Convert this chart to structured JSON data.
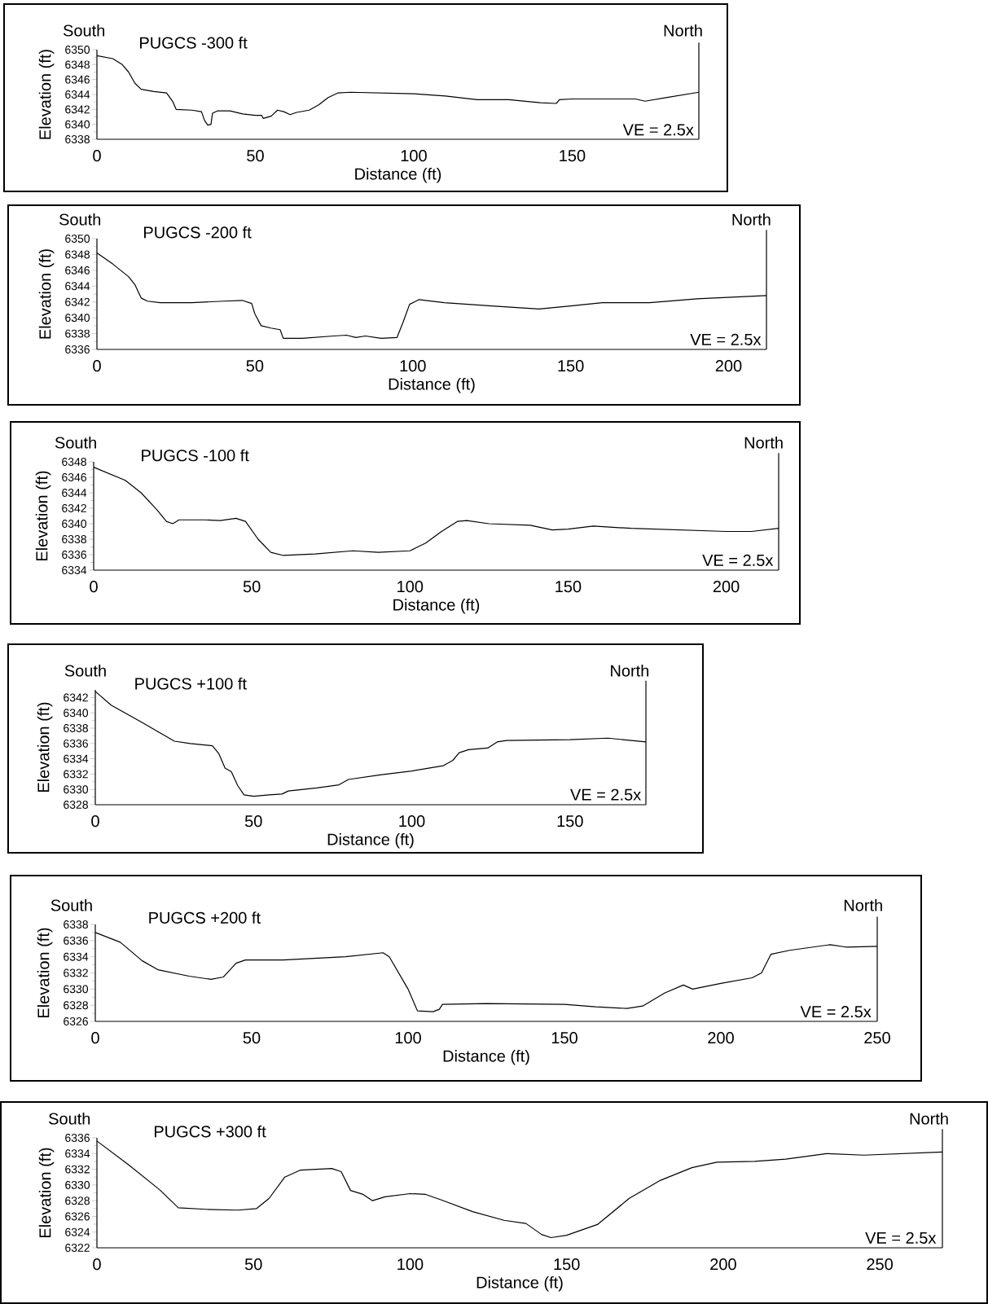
{
  "chart_data": [
    {
      "type": "line",
      "title": "PUGCS -300 ft",
      "xlabel": "Distance (ft)",
      "ylabel": "Elevation (ft)",
      "color": "#000000",
      "annotations": [
        "South",
        "North",
        "VE = 2.5x"
      ],
      "xlim": [
        0,
        190
      ],
      "ylim": [
        6338,
        6350
      ],
      "xticks": [
        0,
        50,
        100,
        150
      ],
      "yticks": [
        6338,
        6340,
        6342,
        6344,
        6346,
        6348,
        6350
      ],
      "x": [
        0,
        5,
        8,
        10,
        12,
        14,
        18,
        22,
        24,
        25,
        30,
        33,
        34,
        35,
        36,
        36.5,
        38,
        42,
        46,
        50,
        52,
        52.5,
        55,
        57,
        59,
        61,
        63,
        67,
        70,
        73,
        76,
        80,
        100,
        110,
        120,
        130,
        140,
        145,
        146,
        150,
        160,
        170,
        173,
        180,
        190
      ],
      "values": [
        6349.2,
        6348.8,
        6348,
        6347,
        6345.5,
        6344.7,
        6344.4,
        6344.2,
        6343,
        6342,
        6341.9,
        6341.7,
        6340.5,
        6339.9,
        6340,
        6341.5,
        6341.8,
        6341.8,
        6341.4,
        6341.2,
        6341.2,
        6340.8,
        6341.1,
        6341.9,
        6341.7,
        6341.3,
        6341.6,
        6341.9,
        6342.6,
        6343.6,
        6344.2,
        6344.3,
        6344.1,
        6343.8,
        6343.3,
        6343.3,
        6342.9,
        6342.8,
        6343.3,
        6343.4,
        6343.4,
        6343.4,
        6343.1,
        6343.6,
        6344.3
      ]
    },
    {
      "type": "line",
      "title": "PUGCS -200 ft",
      "xlabel": "Distance (ft)",
      "ylabel": "Elevation (ft)",
      "color": "#000000",
      "annotations": [
        "South",
        "North",
        "VE = 2.5x"
      ],
      "xlim": [
        0,
        212
      ],
      "ylim": [
        6336,
        6350
      ],
      "xticks": [
        0,
        50,
        100,
        150,
        200
      ],
      "yticks": [
        6336,
        6338,
        6340,
        6342,
        6344,
        6346,
        6348,
        6350
      ],
      "x": [
        0,
        5,
        10,
        12,
        14,
        16,
        20,
        30,
        40,
        46,
        49,
        50,
        52,
        55,
        58,
        59,
        65,
        75,
        79,
        82,
        85,
        90,
        95,
        97,
        99,
        102,
        110,
        125,
        140,
        150,
        160,
        175,
        190,
        212
      ],
      "values": [
        6348.2,
        6346.8,
        6345.2,
        6344.2,
        6342.5,
        6342.1,
        6341.9,
        6341.9,
        6342.1,
        6342.2,
        6341.8,
        6340.5,
        6339,
        6338.7,
        6338.5,
        6337.4,
        6337.4,
        6337.7,
        6337.8,
        6337.5,
        6337.7,
        6337.4,
        6337.5,
        6339.5,
        6341.7,
        6342.3,
        6341.9,
        6341.5,
        6341.1,
        6341.5,
        6341.9,
        6341.9,
        6342.4,
        6342.8
      ]
    },
    {
      "type": "line",
      "title": "PUGCS -100 ft",
      "xlabel": "Distance (ft)",
      "ylabel": "Elevation (ft)",
      "color": "#000000",
      "annotations": [
        "South",
        "North",
        "VE = 2.5x"
      ],
      "xlim": [
        0,
        216.6
      ],
      "ylim": [
        6334,
        6348
      ],
      "xticks": [
        0,
        50,
        100,
        150,
        200
      ],
      "yticks": [
        6334,
        6336,
        6338,
        6340,
        6342,
        6344,
        6346,
        6348
      ],
      "x": [
        0,
        10,
        15,
        20,
        23,
        25,
        27,
        35,
        40,
        45,
        48,
        52,
        56,
        60,
        70,
        82,
        90,
        100,
        105,
        110,
        115,
        118,
        125,
        138,
        145,
        150,
        158,
        170,
        200,
        208,
        216.6
      ],
      "values": [
        6347.3,
        6345.6,
        6344,
        6341.8,
        6340.3,
        6340,
        6340.5,
        6340.5,
        6340.4,
        6340.7,
        6340.3,
        6338,
        6336.3,
        6335.9,
        6336.1,
        6336.5,
        6336.3,
        6336.5,
        6337.5,
        6339,
        6340.3,
        6340.4,
        6340,
        6339.8,
        6339.2,
        6339.3,
        6339.7,
        6339.4,
        6339,
        6339,
        6339.4
      ]
    },
    {
      "type": "line",
      "title": "PUGCS +100 ft",
      "xlabel": "Distance (ft)",
      "ylabel": "Elevation (ft)",
      "color": "#000000",
      "annotations": [
        "South",
        "North",
        "VE = 2.5x"
      ],
      "xlim": [
        0,
        174
      ],
      "ylim": [
        6328,
        6343
      ],
      "xticks": [
        0,
        50,
        100,
        150
      ],
      "yticks": [
        6328,
        6330,
        6332,
        6334,
        6336,
        6338,
        6340,
        6342
      ],
      "x": [
        0,
        5,
        15,
        25,
        30,
        37,
        39,
        41,
        43,
        45,
        47,
        50,
        55,
        59,
        61,
        70,
        77,
        80,
        90,
        100,
        110,
        113,
        115,
        118,
        124,
        127,
        130,
        150,
        162,
        174
      ],
      "values": [
        6342.8,
        6341,
        6338.7,
        6336.3,
        6336,
        6335.7,
        6334.7,
        6332.8,
        6332.3,
        6330.5,
        6329.3,
        6329.1,
        6329.3,
        6329.4,
        6329.8,
        6330.2,
        6330.6,
        6331.3,
        6331.9,
        6332.4,
        6333.1,
        6333.8,
        6334.8,
        6335.2,
        6335.4,
        6336.2,
        6336.4,
        6336.5,
        6336.7,
        6336.2
      ]
    },
    {
      "type": "line",
      "title": "PUGCS +200 ft",
      "xlabel": "Distance (ft)",
      "ylabel": "Elevation (ft)",
      "color": "#000000",
      "annotations": [
        "South",
        "North",
        "VE = 2.5x"
      ],
      "xlim": [
        0,
        250
      ],
      "ylim": [
        6326,
        6338
      ],
      "xticks": [
        0,
        50,
        100,
        150,
        200,
        250
      ],
      "yticks": [
        6326,
        6328,
        6330,
        6332,
        6334,
        6336,
        6338
      ],
      "x": [
        0,
        8,
        15,
        20,
        30,
        37,
        41,
        45,
        48,
        60,
        80,
        92,
        94,
        100,
        103,
        108,
        110,
        111,
        125,
        150,
        160,
        170,
        175,
        182,
        188,
        191,
        200,
        210,
        213,
        216,
        222,
        235,
        240,
        250
      ],
      "values": [
        6337,
        6335.8,
        6333.5,
        6332.4,
        6331.6,
        6331.2,
        6331.5,
        6333.2,
        6333.6,
        6333.6,
        6334,
        6334.5,
        6334,
        6330,
        6327.3,
        6327.2,
        6327.5,
        6328.1,
        6328.2,
        6328.1,
        6327.8,
        6327.6,
        6327.9,
        6329.5,
        6330.5,
        6330,
        6330.7,
        6331.4,
        6332,
        6334.3,
        6334.8,
        6335.5,
        6335.2,
        6335.3
      ]
    },
    {
      "type": "line",
      "title": "PUGCS +300 ft",
      "xlabel": "Distance (ft)",
      "ylabel": "Elevation (ft)",
      "color": "#000000",
      "annotations": [
        "South",
        "North",
        "VE = 2.5x"
      ],
      "xlim": [
        0,
        270
      ],
      "ylim": [
        6322,
        6336
      ],
      "xticks": [
        0,
        50,
        100,
        150,
        200,
        250
      ],
      "yticks": [
        6322,
        6324,
        6326,
        6328,
        6330,
        6332,
        6334,
        6336
      ],
      "x": [
        0,
        10,
        20,
        26,
        35,
        45,
        51,
        55,
        60,
        65,
        75,
        78,
        81,
        85,
        88,
        92,
        100,
        105,
        110,
        120,
        130,
        137,
        142,
        145,
        150,
        160,
        170,
        180,
        190,
        198,
        210,
        220,
        233,
        245,
        270
      ],
      "values": [
        6335.6,
        6332.6,
        6329.4,
        6327.1,
        6326.9,
        6326.8,
        6327,
        6328.3,
        6331,
        6331.9,
        6332.1,
        6331.7,
        6329.3,
        6328.8,
        6328,
        6328.5,
        6328.9,
        6328.8,
        6328.1,
        6326.6,
        6325.5,
        6325.1,
        6323.7,
        6323.3,
        6323.6,
        6325,
        6328.3,
        6330.6,
        6332.2,
        6332.9,
        6333,
        6333.3,
        6334,
        6333.8,
        6334.2
      ]
    }
  ]
}
